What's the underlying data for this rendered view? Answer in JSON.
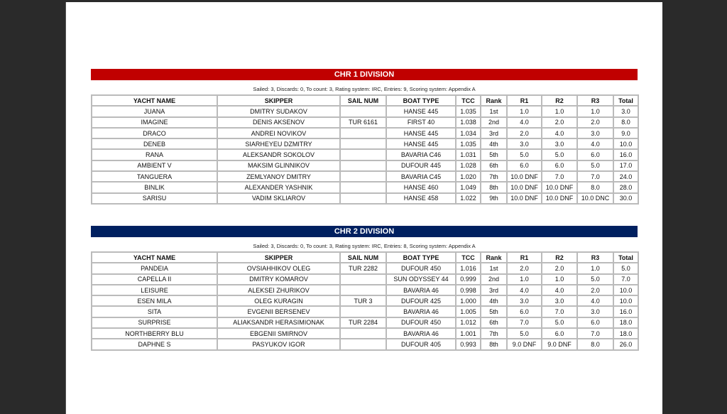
{
  "columns": [
    "YACHT NAME",
    "SKIPPER",
    "SAIL NUM",
    "BOAT TYPE",
    "TCC",
    "Rank",
    "R1",
    "R2",
    "R3",
    "Total"
  ],
  "colors": {
    "background": "#2a2a2a",
    "chr1_bar": "#c00000",
    "chr2_bar": "#002060"
  },
  "divisions": [
    {
      "title": "CHR 1 DIVISION",
      "info": "Sailed: 3, Discards: 0, To count: 3, Rating system: IRC, Entries: 9, Scoring system: Appendix A",
      "rows": [
        [
          "JUANA",
          "DMITRY SUDAKOV",
          "",
          "HANSE 445",
          "1.035",
          "1st",
          "1.0",
          "1.0",
          "1.0",
          "3.0"
        ],
        [
          "IMAGINE",
          "DENIS AKSENOV",
          "TUR 6161",
          "FIRST 40",
          "1.038",
          "2nd",
          "4.0",
          "2.0",
          "2.0",
          "8.0"
        ],
        [
          "DRACO",
          "ANDREI NOVIKOV",
          "",
          "HANSE 445",
          "1.034",
          "3rd",
          "2.0",
          "4.0",
          "3.0",
          "9.0"
        ],
        [
          "DENEB",
          "SIARHEYEU DZMITRY",
          "",
          "HANSE 445",
          "1.035",
          "4th",
          "3.0",
          "3.0",
          "4.0",
          "10.0"
        ],
        [
          "RANA",
          "ALEKSANDR SOKOLOV",
          "",
          "BAVARIA C46",
          "1.031",
          "5th",
          "5.0",
          "5.0",
          "6.0",
          "16.0"
        ],
        [
          "AMBIENT V",
          "MAKSIM GLINNIKOV",
          "",
          "DUFOUR 445",
          "1.028",
          "6th",
          "6.0",
          "6.0",
          "5.0",
          "17.0"
        ],
        [
          "TANGUERA",
          "ZEMLYANOY DMITRY",
          "",
          "BAVARIA C45",
          "1.020",
          "7th",
          "10.0 DNF",
          "7.0",
          "7.0",
          "24.0"
        ],
        [
          "BINLIK",
          "ALEXANDER YASHNIK",
          "",
          "HANSE 460",
          "1.049",
          "8th",
          "10.0 DNF",
          "10.0 DNF",
          "8.0",
          "28.0"
        ],
        [
          "SARISU",
          "VADIM SKLIAROV",
          "",
          "HANSE 458",
          "1.022",
          "9th",
          "10.0 DNF",
          "10.0 DNF",
          "10.0 DNC",
          "30.0"
        ]
      ]
    },
    {
      "title": "CHR 2 DIVISION",
      "info": "Sailed: 3, Discards: 0, To count: 3, Rating system: IRC, Entries: 8, Scoring system: Appendix A",
      "rows": [
        [
          "PANDEIA",
          "OVSIAHHIKOV OLEG",
          "TUR 2282",
          "DUFOUR 450",
          "1.016",
          "1st",
          "2.0",
          "2.0",
          "1.0",
          "5.0"
        ],
        [
          "CAPELLA II",
          "DMITRY KOMAROV",
          "",
          "SUN ODYSSEY 44",
          "0.999",
          "2nd",
          "1.0",
          "1.0",
          "5.0",
          "7.0"
        ],
        [
          "LEISURE",
          "ALEKSEI ZHURIKOV",
          "",
          "BAVARIA 46",
          "0.998",
          "3rd",
          "4.0",
          "4.0",
          "2.0",
          "10.0"
        ],
        [
          "ESEN MILA",
          "OLEG KURAGIN",
          "TUR 3",
          "DUFOUR 425",
          "1.000",
          "4th",
          "3.0",
          "3.0",
          "4.0",
          "10.0"
        ],
        [
          "SITA",
          "EVGENII BERSENEV",
          "",
          "BAVARIA 46",
          "1.005",
          "5th",
          "6.0",
          "7.0",
          "3.0",
          "16.0"
        ],
        [
          "SURPRISE",
          "ALIAKSANDR HERASIMIONAK",
          "TUR 2284",
          "DUFOUR 450",
          "1.012",
          "6th",
          "7.0",
          "5.0",
          "6.0",
          "18.0"
        ],
        [
          "NORTHBERRY BLU",
          "EBGENII SMIRNOV",
          "",
          "BAVARIA 46",
          "1.001",
          "7th",
          "5.0",
          "6.0",
          "7.0",
          "18.0"
        ],
        [
          "DAPHNE S",
          "PASYUKOV IGOR",
          "",
          "DUFOUR 405",
          "0.993",
          "8th",
          "9.0 DNF",
          "9.0 DNF",
          "8.0",
          "26.0"
        ]
      ]
    }
  ]
}
